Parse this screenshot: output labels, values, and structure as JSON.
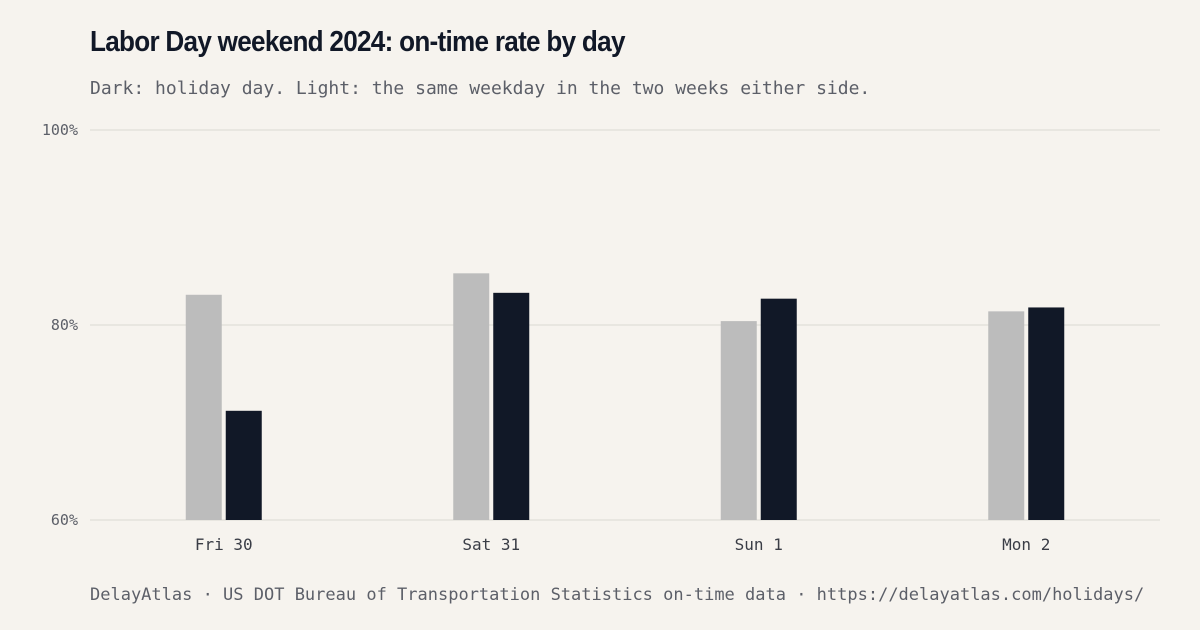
{
  "title": "Labor Day weekend 2024: on-time rate by day",
  "subtitle": "Dark: holiday day. Light: the same weekday in the two weeks either side.",
  "footer": "DelayAtlas · US DOT Bureau of Transportation Statistics on-time data · https://delayatlas.com/holidays/",
  "colors": {
    "background": "#f6f3ee",
    "baseline_bar": "#bcbcbc",
    "holiday_bar": "#111827",
    "grid": "#e4e1dc"
  },
  "chart_data": {
    "type": "bar",
    "categories": [
      "Fri 30",
      "Sat 31",
      "Sun 1",
      "Mon 2"
    ],
    "series": [
      {
        "values": [
          83.1,
          85.3,
          80.4,
          81.4
        ],
        "color": "#bcbcbc"
      },
      {
        "values": [
          71.2,
          83.3,
          82.7,
          81.8
        ],
        "color": "#111827"
      }
    ],
    "yticks": [
      60,
      80,
      100
    ],
    "ytick_labels": [
      "60%",
      "80%",
      "100%"
    ],
    "ylim": [
      60,
      100
    ],
    "xlabel": "",
    "ylabel": "",
    "grid": true
  }
}
